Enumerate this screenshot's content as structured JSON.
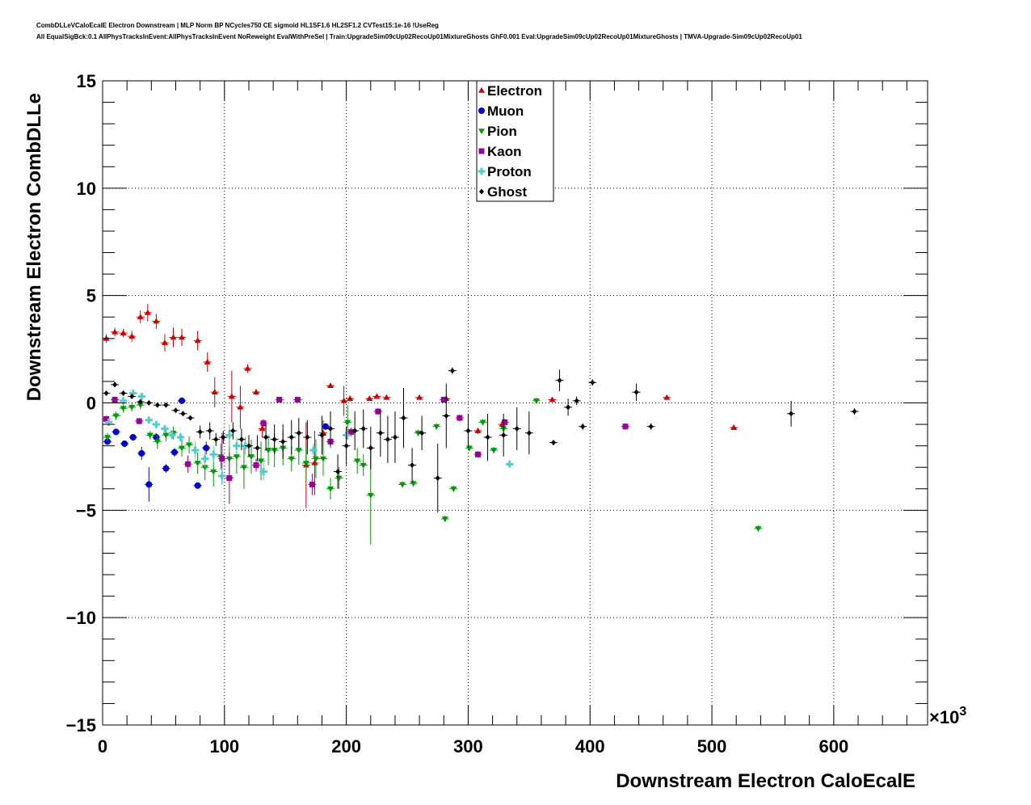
{
  "chart_data": {
    "type": "scatter",
    "title_line1": "CombDLLeVCaloEcalE Electron Downstream | MLP Norm BP NCycles750 CE sigmoid HL1SF1.6 HL2SF1.2 CVTest15:1e-16 !UseReg",
    "title_line2": "All EqualSigBck:0.1 AllPhysTracksInEvent:AllPhysTracksInEvent NoReweight EvalWithPreSel | Train:UpgradeSim09cUp02RecoUp01MixtureGhosts GhF0.001 Eval:UpgradeSim09cUp02RecoUp01MixtureGhosts | TMVA-Upgrade-Sim09cUp02RecoUp01",
    "xlabel": "Downstream Electron CaloEcalE",
    "ylabel": "Downstream Electron CombDLLe",
    "x_exponent_label": "×10",
    "x_exponent_power": "3",
    "xlim": [
      0,
      677
    ],
    "ylim": [
      -15,
      15
    ],
    "x_ticks": [
      "0",
      "100",
      "200",
      "300",
      "400",
      "500",
      "600"
    ],
    "x_tick_values": [
      0,
      100,
      200,
      300,
      400,
      500,
      600
    ],
    "y_ticks": [
      "15",
      "10",
      "5",
      "0",
      "−5",
      "−10",
      "−15"
    ],
    "y_tick_values": [
      15,
      10,
      5,
      0,
      -5,
      -10,
      -15
    ],
    "grid": true,
    "legend_position": "top-center",
    "series": [
      {
        "name": "Electron",
        "color": "#cc0000",
        "marker": "triangle-up",
        "points": [
          [
            3,
            3.0,
            0.2
          ],
          [
            10,
            3.3,
            0.2
          ],
          [
            17,
            3.25,
            0.2
          ],
          [
            24,
            3.1,
            0.25
          ],
          [
            31,
            4.0,
            0.3
          ],
          [
            37,
            4.2,
            0.4
          ],
          [
            44,
            3.8,
            0.35
          ],
          [
            51,
            2.8,
            0.4
          ],
          [
            58,
            3.05,
            0.45
          ],
          [
            65,
            3.05,
            0.4
          ],
          [
            78,
            2.9,
            0.45
          ],
          [
            86,
            1.9,
            0.45
          ],
          [
            92,
            0.5,
            0.7
          ],
          [
            106,
            0.3,
            1.2
          ],
          [
            113,
            -0.2,
            1.0
          ],
          [
            119,
            1.6,
            0.2
          ],
          [
            126,
            0.5,
            0.15
          ],
          [
            131,
            -1.2,
            0.4
          ],
          [
            167,
            -2.9,
            2.0
          ],
          [
            174,
            -2.8,
            1.5
          ],
          [
            181,
            -1.4,
            0.6
          ],
          [
            187,
            0.8,
            0.1
          ],
          [
            198,
            0.1,
            0.7
          ],
          [
            203,
            0.2,
            0.15
          ],
          [
            219,
            0.2,
            0.1
          ],
          [
            225,
            0.3,
            0.1
          ],
          [
            233,
            0.25,
            0.1
          ],
          [
            260,
            0.25,
            0.1
          ],
          [
            282,
            0.2,
            0.1
          ],
          [
            308,
            -1.3,
            0.15
          ],
          [
            328,
            -1.0,
            0.1
          ],
          [
            369,
            0.15,
            0.1
          ],
          [
            463,
            0.25,
            0.1
          ],
          [
            518,
            -1.15,
            0.1
          ]
        ]
      },
      {
        "name": "Muon",
        "color": "#0000cc",
        "marker": "circle",
        "points": [
          [
            4,
            -1.8,
            0.15
          ],
          [
            11,
            -1.35,
            0.15
          ],
          [
            18,
            -1.9,
            0.15
          ],
          [
            25,
            -1.6,
            0.15
          ],
          [
            32,
            -2.35,
            0.3
          ],
          [
            38,
            -3.8,
            0.8
          ],
          [
            44,
            -1.6,
            0.2
          ],
          [
            52,
            -3.05,
            0.2
          ],
          [
            59,
            -2.3,
            0.2
          ],
          [
            65,
            0.1,
            0.15
          ],
          [
            78,
            -3.85,
            0.15
          ],
          [
            85,
            -2.1,
            0.3
          ],
          [
            183,
            -1.1,
            0.15
          ]
        ]
      },
      {
        "name": "Pion",
        "color": "#009900",
        "marker": "triangle-down",
        "points": [
          [
            4,
            -1.6,
            0.2
          ],
          [
            11,
            -0.6,
            0.2
          ],
          [
            17,
            -0.25,
            0.2
          ],
          [
            24,
            -0.2,
            0.2
          ],
          [
            31,
            -0.1,
            0.2
          ],
          [
            39,
            -1.5,
            0.2
          ],
          [
            45,
            -1.8,
            0.35
          ],
          [
            52,
            -1.5,
            0.3
          ],
          [
            58,
            -1.4,
            0.3
          ],
          [
            65,
            -2.1,
            0.4
          ],
          [
            71,
            -1.95,
            0.4
          ],
          [
            78,
            -2.8,
            0.5
          ],
          [
            84,
            -3.0,
            0.6
          ],
          [
            91,
            -3.2,
            0.7
          ],
          [
            97,
            -2.5,
            0.6
          ],
          [
            104,
            -2.6,
            0.9
          ],
          [
            110,
            -2.5,
            0.8
          ],
          [
            116,
            -3.0,
            1.0
          ],
          [
            122,
            -2.5,
            0.8
          ],
          [
            130,
            -2.7,
            0.9
          ],
          [
            136,
            -2.2,
            0.7
          ],
          [
            141,
            -2.2,
            0.8
          ],
          [
            148,
            -2.1,
            0.8
          ],
          [
            155,
            -2.6,
            0.6
          ],
          [
            161,
            -2.2,
            0.7
          ],
          [
            167,
            -2.8,
            0.8
          ],
          [
            175,
            -2.6,
            0.9
          ],
          [
            181,
            -2.6,
            0.8
          ],
          [
            187,
            -4.0,
            0.5
          ],
          [
            194,
            -3.5,
            0.5
          ],
          [
            201,
            -0.9,
            0.8
          ],
          [
            209,
            -2.7,
            0.6
          ],
          [
            214,
            -2.9,
            0.5
          ],
          [
            220,
            -4.3,
            2.3
          ],
          [
            246,
            -3.8,
            0.15
          ],
          [
            255,
            -3.75,
            0.15
          ],
          [
            259,
            -1.4,
            0.15
          ],
          [
            274,
            -1.1,
            0.15
          ],
          [
            281,
            -5.4,
            0.15
          ],
          [
            288,
            -4.0,
            0.15
          ],
          [
            301,
            -2.1,
            0.15
          ],
          [
            312,
            -0.9,
            0.15
          ],
          [
            321,
            -2.2,
            0.15
          ],
          [
            329,
            -1.2,
            0.15
          ],
          [
            356,
            0.1,
            0.15
          ],
          [
            538,
            -5.85,
            0.15
          ]
        ]
      },
      {
        "name": "Kaon",
        "color": "#990099",
        "marker": "square",
        "points": [
          [
            3,
            -0.75,
            0.15
          ],
          [
            10,
            0.15,
            0.15
          ],
          [
            30,
            -0.85,
            0.15
          ],
          [
            70,
            -2.85,
            0.4
          ],
          [
            98,
            -2.6,
            1.2
          ],
          [
            104,
            -3.5,
            1.2
          ],
          [
            126,
            -2.9,
            0.3
          ],
          [
            132,
            -0.95,
            0.2
          ],
          [
            145,
            0.15,
            0.1
          ],
          [
            160,
            0.15,
            0.1
          ],
          [
            172,
            -3.8,
            0.5
          ],
          [
            187,
            -1.8,
            0.3
          ],
          [
            204,
            -1.35,
            0.2
          ],
          [
            226,
            -0.4,
            0.15
          ],
          [
            280,
            0.15,
            0.15
          ],
          [
            293,
            -0.7,
            0.15
          ],
          [
            308,
            -2.4,
            0.15
          ],
          [
            330,
            -0.9,
            0.15
          ],
          [
            429,
            -1.1,
            0.15
          ]
        ]
      },
      {
        "name": "Proton",
        "color": "#55cccc",
        "marker": "cross",
        "points": [
          [
            5,
            -0.9,
            0.1
          ],
          [
            17,
            0.1,
            0.1
          ],
          [
            25,
            0.45,
            0.15
          ],
          [
            32,
            0.3,
            0.1
          ],
          [
            38,
            -0.8,
            0.1
          ],
          [
            44,
            -1.0,
            0.15
          ],
          [
            51,
            -1.2,
            0.15
          ],
          [
            57,
            -1.5,
            0.2
          ],
          [
            64,
            -1.6,
            0.2
          ],
          [
            76,
            -2.2,
            0.4
          ],
          [
            84,
            -2.6,
            0.4
          ],
          [
            91,
            -2.4,
            0.4
          ],
          [
            98,
            -3.4,
            0.4
          ],
          [
            104,
            -1.5,
            0.5
          ],
          [
            110,
            -2.0,
            0.4
          ],
          [
            117,
            -2.0,
            0.4
          ],
          [
            132,
            -3.2,
            0.4
          ],
          [
            173,
            -2.2,
            0.3
          ],
          [
            200,
            -1.5,
            0.2
          ],
          [
            334,
            -2.85,
            0.15
          ]
        ]
      },
      {
        "name": "Ghost",
        "color": "#000000",
        "marker": "diamond",
        "points": [
          [
            3,
            0.45,
            0.1
          ],
          [
            10,
            0.85,
            0.1
          ],
          [
            17,
            0.45,
            0.1
          ],
          [
            24,
            0.3,
            0.1
          ],
          [
            31,
            0.05,
            0.1
          ],
          [
            38,
            0.0,
            0.1
          ],
          [
            45,
            -0.1,
            0.1
          ],
          [
            52,
            -0.1,
            0.1
          ],
          [
            60,
            -0.35,
            0.1
          ],
          [
            66,
            -0.5,
            0.1
          ],
          [
            72,
            -0.7,
            0.1
          ],
          [
            80,
            -1.35,
            0.3
          ],
          [
            88,
            -1.3,
            0.4
          ],
          [
            93,
            -1.7,
            0.3
          ],
          [
            99,
            -1.6,
            0.3
          ],
          [
            107,
            -1.3,
            0.4
          ],
          [
            114,
            -1.7,
            0.5
          ],
          [
            120,
            -2.0,
            0.5
          ],
          [
            127,
            -2.1,
            0.6
          ],
          [
            134,
            -1.6,
            0.6
          ],
          [
            141,
            -1.7,
            0.7
          ],
          [
            148,
            -1.8,
            0.8
          ],
          [
            155,
            -1.6,
            0.8
          ],
          [
            161,
            -1.4,
            0.7
          ],
          [
            168,
            -1.6,
            0.8
          ],
          [
            180,
            -1.5,
            0.9
          ],
          [
            187,
            -1.2,
            0.8
          ],
          [
            193,
            -3.2,
            0.8
          ],
          [
            200,
            -2.0,
            0.9
          ],
          [
            207,
            -1.3,
            0.9
          ],
          [
            214,
            -1.2,
            0.9
          ],
          [
            220,
            -2.1,
            1.0
          ],
          [
            228,
            -1.4,
            1.1
          ],
          [
            234,
            -1.7,
            1.1
          ],
          [
            240,
            -1.6,
            1.2
          ],
          [
            247,
            -0.7,
            1.4
          ],
          [
            254,
            -2.9,
            0.8
          ],
          [
            262,
            -1.4,
            0.8
          ],
          [
            275,
            -3.5,
            1.6
          ],
          [
            282,
            -0.6,
            1.5
          ],
          [
            287,
            1.5,
            0.15
          ],
          [
            300,
            -1.3,
            0.8
          ],
          [
            316,
            -1.6,
            1.1
          ],
          [
            329,
            -1.5,
            1.0
          ],
          [
            340,
            -1.2,
            1.0
          ],
          [
            350,
            -1.4,
            1.0
          ],
          [
            370,
            -1.85,
            0.1
          ],
          [
            375,
            1.05,
            0.5
          ],
          [
            382,
            -0.2,
            0.4
          ],
          [
            389,
            0.1,
            0.2
          ],
          [
            394,
            -1.1,
            0.15
          ],
          [
            402,
            0.95,
            0.15
          ],
          [
            438,
            0.5,
            0.4
          ],
          [
            450,
            -1.1,
            0.15
          ],
          [
            565,
            -0.5,
            0.6
          ],
          [
            617,
            -0.4,
            0.15
          ]
        ]
      }
    ]
  }
}
